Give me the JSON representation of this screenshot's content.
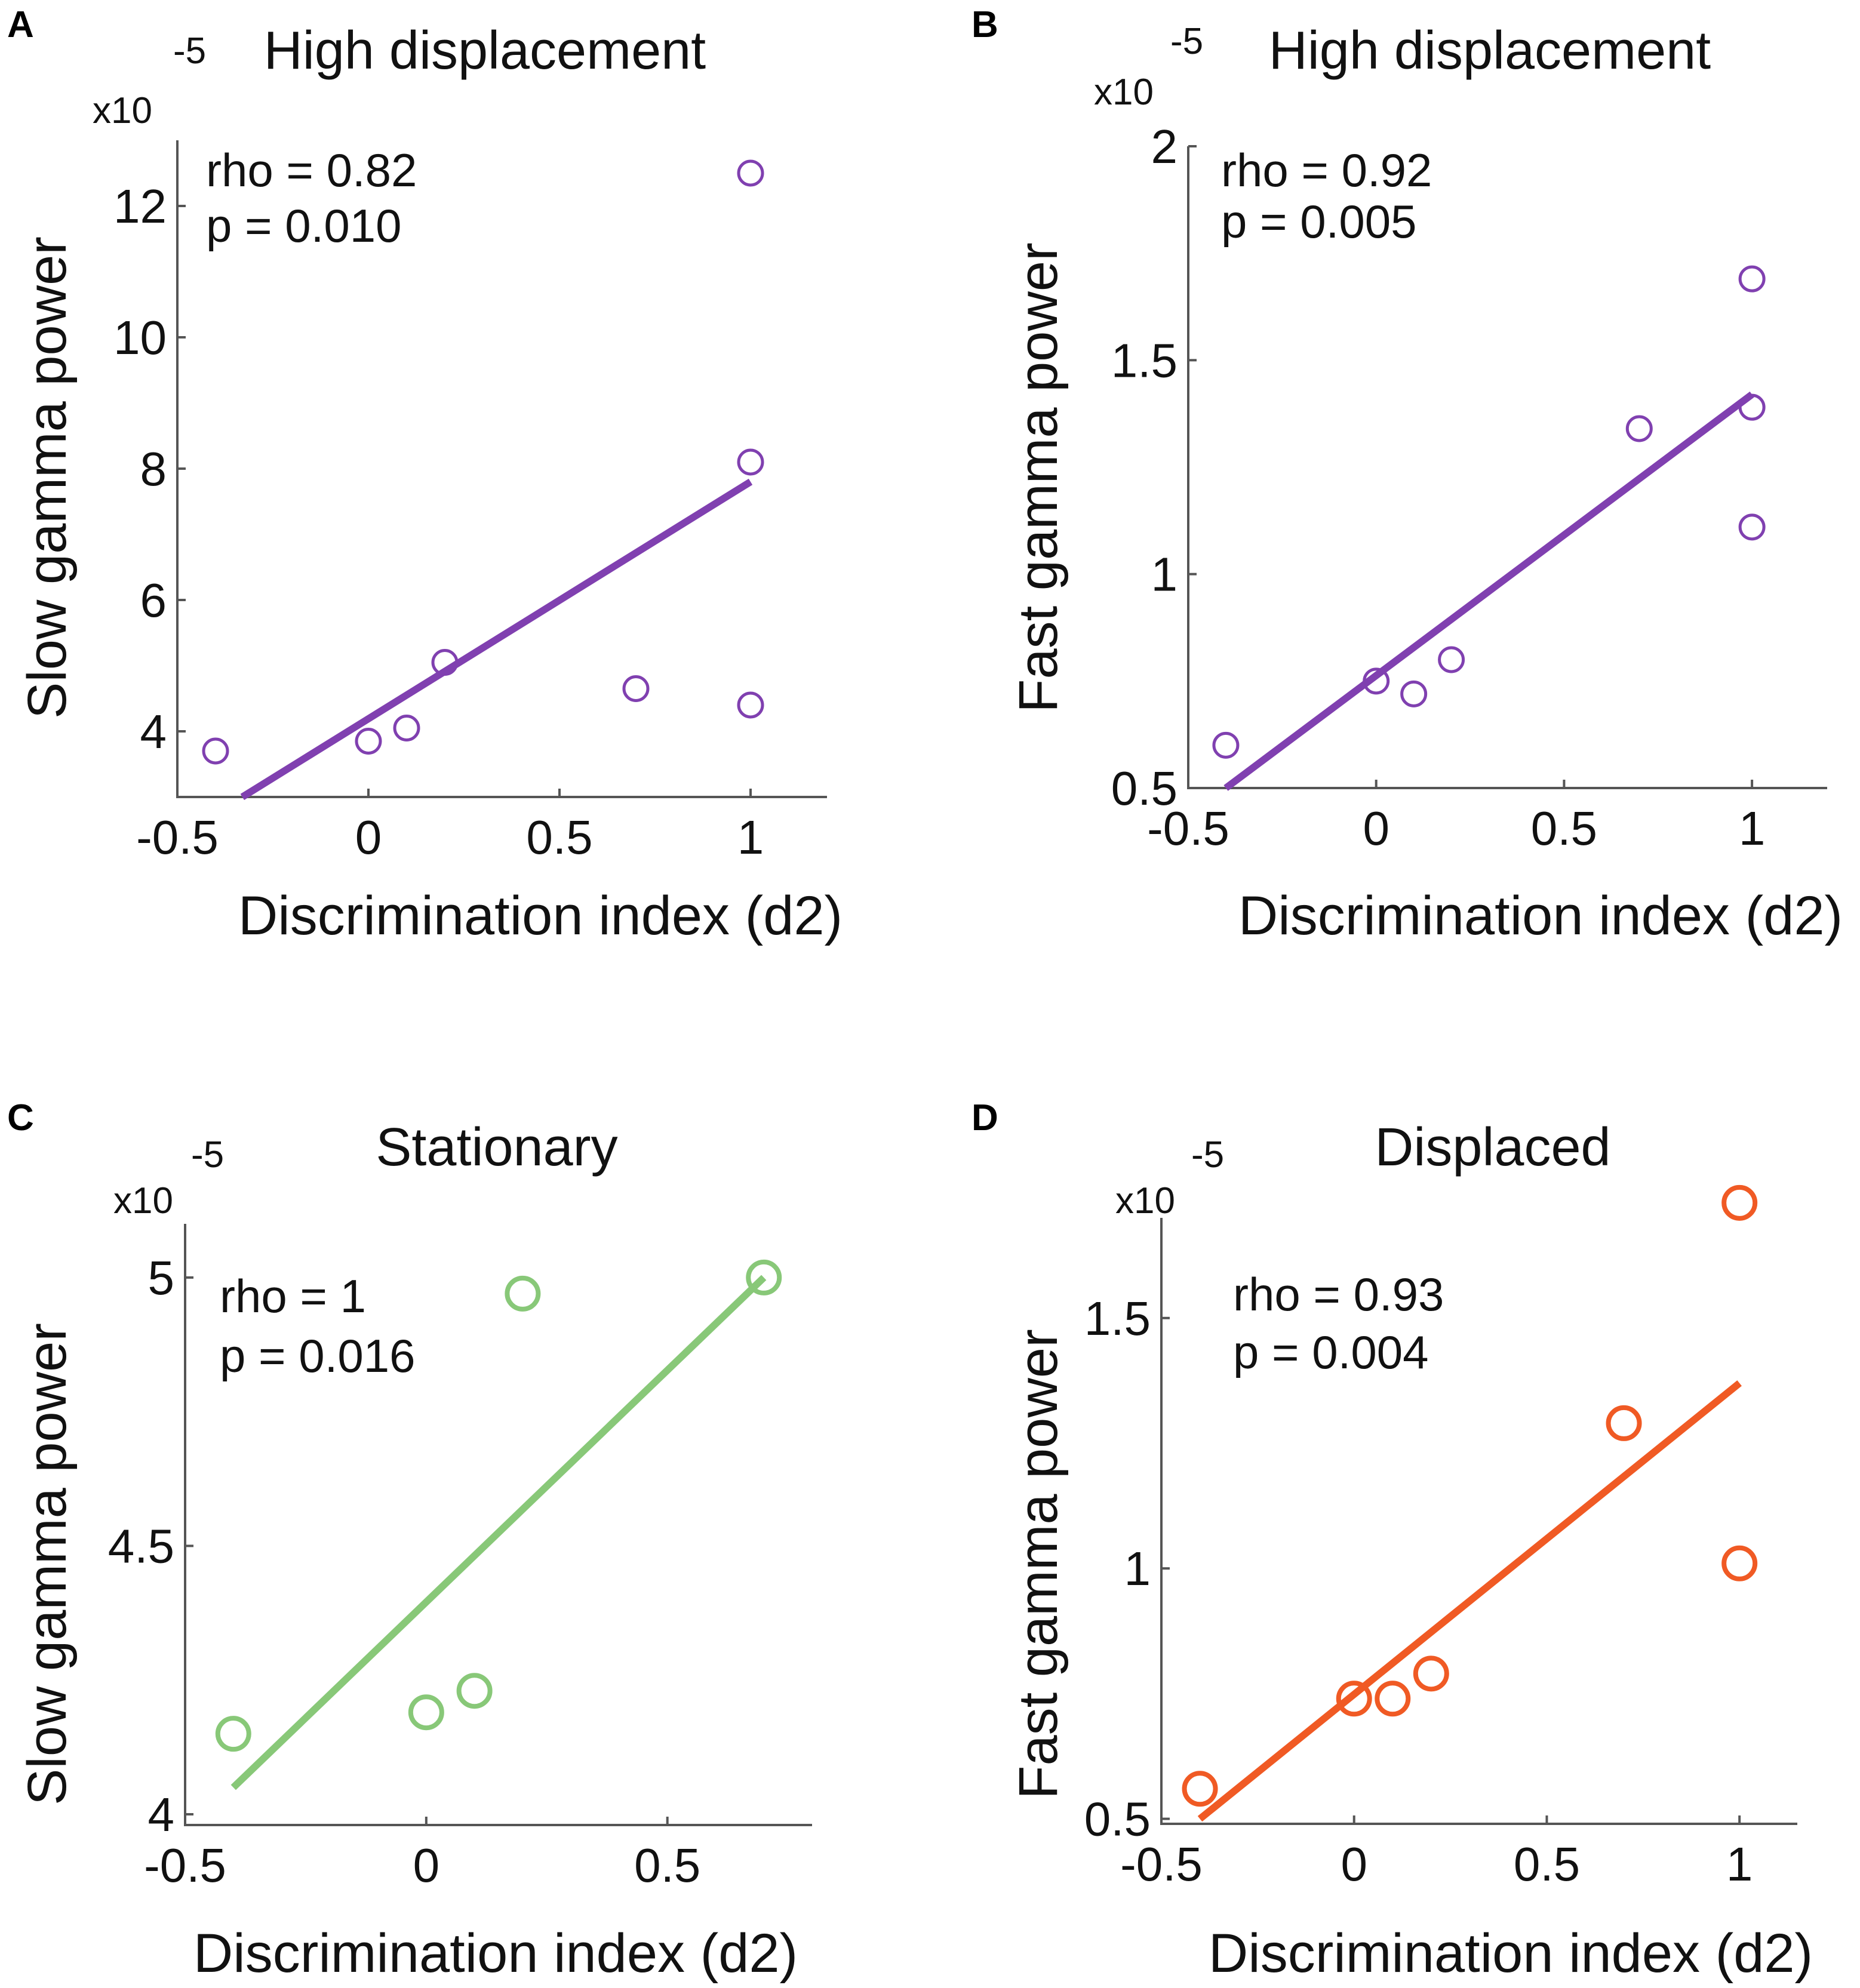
{
  "chart_data": [
    {
      "type": "scatter",
      "panel": "A",
      "title": "High displacement",
      "xlabel": "Discrimination index (d2)",
      "ylabel": "Slow gamma power",
      "y_multiplier": "x10",
      "y_exponent": "-5",
      "xlim": [
        -0.5,
        1.2
      ],
      "ylim": [
        3,
        13
      ],
      "xticks": [
        -0.5,
        0,
        0.5,
        1
      ],
      "xtick_labels": [
        "-0.5",
        "0",
        "0.5",
        "1"
      ],
      "yticks": [
        4,
        6,
        8,
        10,
        12
      ],
      "ytick_labels": [
        "4",
        "6",
        "8",
        "10",
        "12"
      ],
      "color": "#8040b0",
      "points": {
        "x": [
          -0.4,
          0,
          0.1,
          0.2,
          0.7,
          1,
          1,
          1
        ],
        "y": [
          3.7,
          3.85,
          4.05,
          5.05,
          4.65,
          4.4,
          8.1,
          12.5
        ]
      },
      "fit": {
        "x": [
          -0.33,
          1.0
        ],
        "y": [
          3.0,
          7.8
        ]
      },
      "annotation": {
        "rho": "rho = 0.82",
        "p": "p = 0.010"
      }
    },
    {
      "type": "scatter",
      "panel": "B",
      "title": "High displacement",
      "xlabel": "Discrimination index (d2)",
      "ylabel": "Fast gamma power",
      "y_multiplier": "x10",
      "y_exponent": "-5",
      "xlim": [
        -0.5,
        1.2
      ],
      "ylim": [
        0.5,
        2
      ],
      "xticks": [
        -0.5,
        0,
        0.5,
        1
      ],
      "xtick_labels": [
        "-0.5",
        "0",
        "0.5",
        "1"
      ],
      "yticks": [
        0.5,
        1,
        1.5,
        2
      ],
      "ytick_labels": [
        "0.5",
        "1",
        "1.5",
        "2"
      ],
      "color": "#8040b0",
      "points": {
        "x": [
          -0.4,
          0,
          0.1,
          0.2,
          0.7,
          1,
          1,
          1
        ],
        "y": [
          0.6,
          0.75,
          0.72,
          0.8,
          1.34,
          1.11,
          1.39,
          1.69
        ]
      },
      "fit": {
        "x": [
          -0.4,
          1.0
        ],
        "y": [
          0.5,
          1.42
        ]
      },
      "annotation": {
        "rho": "rho = 0.92",
        "p": "p = 0.005"
      }
    },
    {
      "type": "scatter",
      "panel": "C",
      "title": "Stationary",
      "xlabel": "Discrimination index (d2)",
      "ylabel": "Slow gamma power",
      "y_multiplier": "x10",
      "y_exponent": "-5",
      "xlim": [
        -0.5,
        0.8
      ],
      "ylim": [
        3.98,
        5.1
      ],
      "xticks": [
        -0.5,
        0,
        0.5
      ],
      "xtick_labels": [
        "-0.5",
        "0",
        "0.5"
      ],
      "yticks": [
        4,
        4.5,
        5
      ],
      "ytick_labels": [
        "4",
        "4.5",
        "5"
      ],
      "color": "#88c878",
      "points": {
        "x": [
          -0.4,
          0,
          0.1,
          0.2,
          0.7
        ],
        "y": [
          4.15,
          4.19,
          4.23,
          4.97,
          5.0
        ]
      },
      "fit": {
        "x": [
          -0.4,
          0.7
        ],
        "y": [
          4.05,
          5.0
        ]
      },
      "annotation": {
        "rho": "rho = 1",
        "p": "p = 0.016"
      }
    },
    {
      "type": "scatter",
      "panel": "D",
      "title": "Displaced",
      "xlabel": "Discrimination index (d2)",
      "ylabel": "Fast gamma power",
      "y_multiplier": "x10",
      "y_exponent": "-5",
      "xlim": [
        -0.5,
        1.15
      ],
      "ylim": [
        0.49,
        1.7
      ],
      "xticks": [
        -0.5,
        0,
        0.5,
        1
      ],
      "xtick_labels": [
        "-0.5",
        "0",
        "0.5",
        "1"
      ],
      "yticks": [
        0.5,
        1,
        1.5
      ],
      "ytick_labels": [
        "0.5",
        "1",
        "1.5"
      ],
      "color": "#f05a24",
      "points": {
        "x": [
          -0.4,
          0,
          0.1,
          0.2,
          0.7,
          1,
          1
        ],
        "y": [
          0.56,
          0.74,
          0.74,
          0.79,
          1.29,
          1.01,
          1.73
        ]
      },
      "fit": {
        "x": [
          -0.4,
          1.0
        ],
        "y": [
          0.5,
          1.37
        ]
      },
      "annotation": {
        "rho": "rho = 0.93",
        "p": "p = 0.004"
      }
    }
  ]
}
